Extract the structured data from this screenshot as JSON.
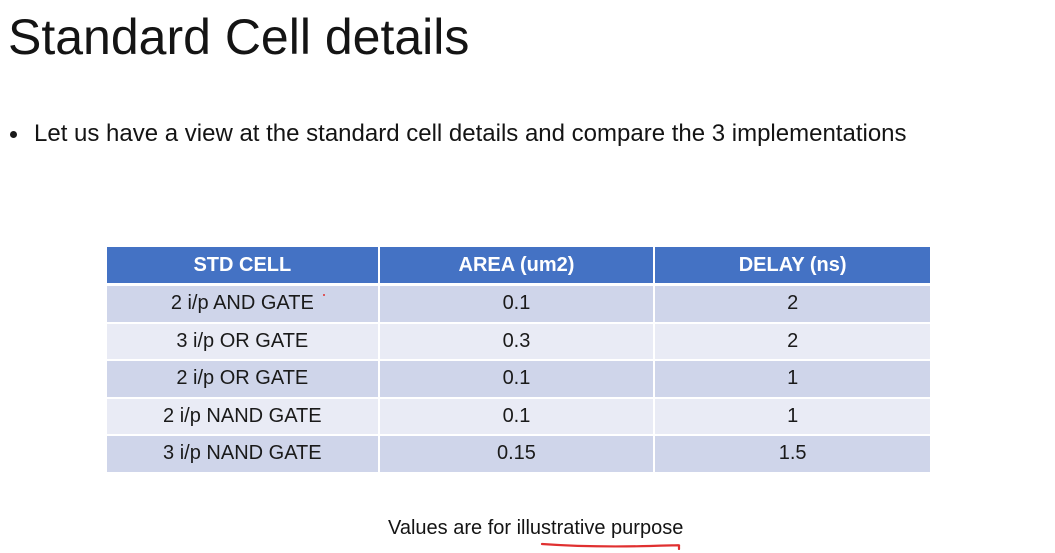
{
  "slide": {
    "title": "Standard Cell details",
    "bullet": "Let us have a view at the standard cell details and compare the 3 implementations",
    "note": "Values are for illustrative purpose"
  },
  "table": {
    "headers": [
      "STD CELL",
      "AREA (um2)",
      "DELAY (ns)"
    ],
    "rows": [
      [
        "2 i/p AND GATE",
        "0.1",
        "2"
      ],
      [
        "3 i/p OR GATE",
        "0.3",
        "2"
      ],
      [
        "2 i/p OR GATE",
        "0.1",
        "1"
      ],
      [
        "2 i/p NAND GATE",
        "0.1",
        "1"
      ],
      [
        "3 i/p NAND GATE",
        "0.15",
        "1.5"
      ]
    ]
  },
  "colors": {
    "header_bg": "#4472c4",
    "row_odd_bg": "#cfd5ea",
    "row_even_bg": "#e9ebf5",
    "annotation_red": "#e03030"
  }
}
